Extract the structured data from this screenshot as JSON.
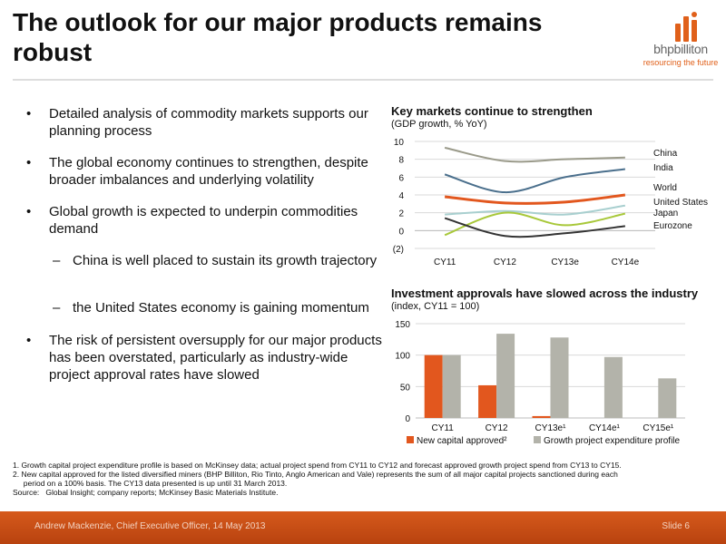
{
  "header": {
    "title": "The outlook for our major products remains robust",
    "logo_name": "bhpbilliton",
    "logo_tagline": "resourcing the future"
  },
  "bullets": [
    {
      "text": "Detailed analysis of commodity markets supports our planning process",
      "level": 1
    },
    {
      "text": "The global economy continues to strengthen, despite broader imbalances and underlying volatility",
      "level": 1
    },
    {
      "text": "Global growth is expected to underpin commodities demand",
      "level": 1
    },
    {
      "text": "China is well placed to sustain its growth trajectory",
      "level": 2
    },
    {
      "text": "the United States economy is gaining momentum",
      "level": 2
    },
    {
      "text": "The risk of persistent oversupply for our major products has been overstated, particularly as industry-wide project approval rates have slowed",
      "level": 1
    }
  ],
  "chart_data": [
    {
      "type": "line",
      "title": "Key markets continue to strengthen",
      "subtitle": "(GDP growth, % YoY)",
      "categories": [
        "CY11",
        "CY12",
        "CY13e",
        "CY14e"
      ],
      "ylim": [
        -2,
        10
      ],
      "yticks": [
        "(2)",
        "0",
        "2",
        "4",
        "6",
        "8",
        "10"
      ],
      "grid": true,
      "legend": "right-end labels",
      "series": [
        {
          "name": "China",
          "values": [
            9.3,
            7.8,
            8.0,
            8.2
          ],
          "color": "#9a9a8a"
        },
        {
          "name": "India",
          "values": [
            6.3,
            4.3,
            6.0,
            6.9
          ],
          "color": "#4a6f8c"
        },
        {
          "name": "World",
          "values": [
            3.8,
            3.1,
            3.2,
            4.0
          ],
          "color": "#e2571e"
        },
        {
          "name": "United States",
          "values": [
            1.8,
            2.2,
            1.8,
            2.8
          ],
          "color": "#a8cfcf"
        },
        {
          "name": "Japan",
          "values": [
            -0.5,
            2.0,
            0.6,
            1.9
          ],
          "color": "#a8c83a"
        },
        {
          "name": "Eurozone",
          "values": [
            1.4,
            -0.6,
            -0.3,
            0.5
          ],
          "color": "#333333"
        }
      ]
    },
    {
      "type": "bar",
      "title": "Investment approvals have slowed across the industry",
      "subtitle": "(index, CY11 = 100)",
      "categories": [
        "CY11",
        "CY12",
        "CY13e¹",
        "CY14e¹",
        "CY15e¹"
      ],
      "ylim": [
        0,
        150
      ],
      "yticks": [
        "0",
        "50",
        "100",
        "150"
      ],
      "grid": true,
      "legend": "bottom",
      "series": [
        {
          "name": "New capital approved²",
          "values": [
            100,
            52,
            3,
            null,
            null
          ],
          "color": "#e2571e"
        },
        {
          "name": "Growth project expenditure profile",
          "values": [
            100,
            134,
            128,
            97,
            63
          ],
          "color": "#b3b3aa"
        }
      ]
    }
  ],
  "footnotes": [
    "1.  Growth capital project expenditure profile is based on McKinsey data; actual project spend from CY11 to CY12 and forecast approved growth project spend from CY13 to CY15.",
    "2.  New capital approved for the listed diversified miners (BHP Billiton, Rio Tinto, Anglo American and Vale) represents the sum of all major capital projects sanctioned during each",
    "     period on a 100% basis. The CY13 data presented is up until 31 March 2013.",
    "Source:   Global Insight; company reports; McKinsey Basic Materials Institute."
  ],
  "footer": {
    "left": "Andrew Mackenzie, Chief Executive Officer, 14 May 2013",
    "right": "Slide 6"
  },
  "colors": {
    "accent": "#d65a1c"
  }
}
